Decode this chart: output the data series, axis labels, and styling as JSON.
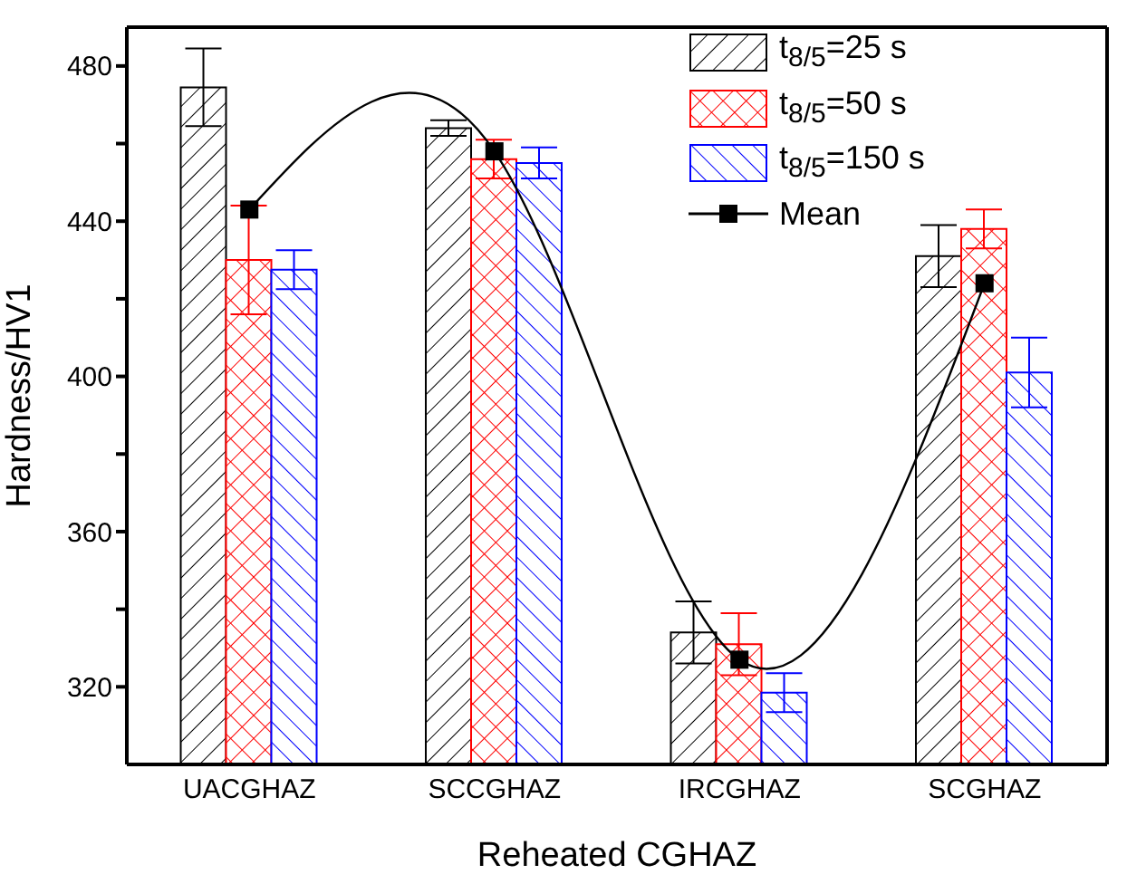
{
  "chart_data": {
    "type": "bar",
    "xlabel": "Reheated CGHAZ",
    "ylabel": "Hardness/HV1",
    "categories": [
      "UACGHAZ",
      "SCCGHAZ",
      "IRCGHAZ",
      "SCGHAZ"
    ],
    "series": [
      {
        "name": "t$_{8/5}$=25 s",
        "color": "#000000",
        "values": [
          474.5,
          464,
          334,
          431
        ],
        "errors": [
          10,
          2,
          8,
          8
        ]
      },
      {
        "name": "t$_{8/5}$=50 s",
        "color": "#ff0000",
        "values": [
          430,
          456,
          331,
          438
        ],
        "errors": [
          14,
          5,
          8,
          5
        ]
      },
      {
        "name": "t$_{8/5}$=150 s",
        "color": "#0000ff",
        "values": [
          427.5,
          455,
          318.5,
          401
        ],
        "errors": [
          5,
          4,
          5,
          9
        ]
      },
      {
        "name": "Mean",
        "type": "line",
        "color": "#000000",
        "values": [
          443,
          458,
          327,
          424
        ],
        "marker": "square"
      }
    ],
    "ylim": [
      300,
      490
    ],
    "yticks": [
      320,
      {
        "value": 340,
        "label": null
      },
      360,
      {
        "value": 380,
        "label": null
      },
      400,
      {
        "value": 420,
        "label": null
      },
      440,
      {
        "value": 460,
        "label": null
      },
      480
    ],
    "legend": "top right"
  }
}
